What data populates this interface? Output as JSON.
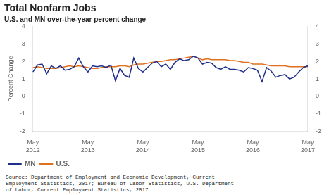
{
  "chart_data": {
    "type": "line",
    "title": "Total Nonfarm Jobs",
    "subtitle": "U.S. and MN over-the-year percent change",
    "source": "Source: Department of Employment and Economic Development, Current\nEmployment Statistics, 2017; Bureau of Labor Statistics, U.S. Department\nof Labor, Current Employment Statistics, 2017.",
    "y_label": "Percent Change",
    "categories": [
      "May\n2012",
      null,
      null,
      null,
      null,
      null,
      null,
      null,
      null,
      null,
      null,
      null,
      "May\n2013",
      null,
      null,
      null,
      null,
      null,
      null,
      null,
      null,
      null,
      null,
      null,
      "May\n2014",
      null,
      null,
      null,
      null,
      null,
      null,
      null,
      null,
      null,
      null,
      null,
      "May\n2015",
      null,
      null,
      null,
      null,
      null,
      null,
      null,
      null,
      null,
      null,
      null,
      "May\n2016",
      null,
      null,
      null,
      null,
      null,
      null,
      null,
      null,
      null,
      null,
      null,
      "May\n2017"
    ],
    "series": [
      {
        "name": "MN",
        "color": "#1f2f8c",
        "values": [
          1.4,
          1.8,
          1.85,
          1.3,
          1.75,
          1.6,
          1.75,
          1.5,
          1.55,
          1.7,
          2.2,
          1.7,
          1.4,
          1.75,
          1.7,
          1.75,
          1.65,
          1.8,
          0.9,
          1.6,
          1.2,
          1.1,
          2.2,
          1.6,
          1.4,
          1.65,
          1.9,
          2.0,
          1.7,
          1.85,
          1.55,
          1.95,
          2.15,
          2.05,
          2.1,
          2.3,
          2.2,
          1.85,
          1.95,
          1.9,
          1.65,
          1.55,
          1.7,
          1.55,
          1.55,
          1.5,
          1.4,
          1.65,
          1.6,
          1.5,
          0.85,
          1.65,
          1.45,
          1.1,
          1.2,
          1.25,
          1.0,
          1.1,
          1.4,
          1.65,
          1.75
        ]
      },
      {
        "name": "U.S.",
        "color": "#e0701e",
        "values": [
          1.65,
          1.7,
          1.65,
          1.6,
          1.6,
          1.6,
          1.65,
          1.7,
          1.75,
          1.7,
          1.75,
          1.7,
          1.65,
          1.6,
          1.6,
          1.65,
          1.7,
          1.7,
          1.7,
          1.75,
          1.75,
          1.7,
          1.8,
          1.85,
          1.85,
          1.9,
          1.95,
          2.0,
          2.0,
          2.05,
          2.1,
          2.1,
          2.15,
          2.2,
          2.25,
          2.3,
          2.2,
          2.1,
          2.15,
          2.1,
          2.1,
          2.1,
          2.1,
          2.05,
          2.05,
          2.0,
          1.95,
          1.95,
          1.85,
          1.85,
          1.85,
          1.8,
          1.75,
          1.75,
          1.75,
          1.75,
          1.7,
          1.7,
          1.7,
          1.7,
          1.7
        ]
      }
    ],
    "ylim": [
      -2,
      4
    ],
    "yticks": [
      -2,
      -1,
      0,
      1,
      2,
      3,
      4
    ],
    "y2lim": [
      -2,
      4
    ],
    "y2ticks": [
      -2,
      -1,
      0,
      1,
      2,
      3,
      4
    ],
    "grid": false,
    "legend": "lower left"
  }
}
